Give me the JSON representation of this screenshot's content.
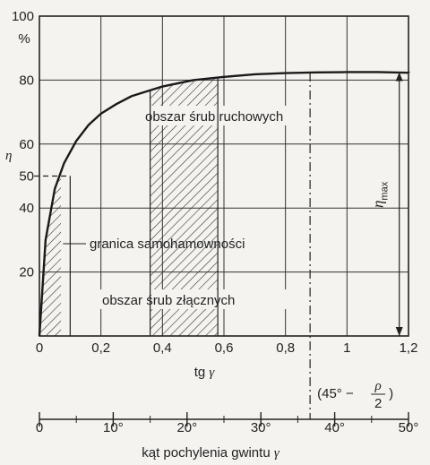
{
  "chart_data": {
    "type": "line",
    "title": "",
    "xlabel": "tg γ",
    "ylabel": "η",
    "yunit": "%",
    "xlim": [
      0,
      1.2
    ],
    "ylim": [
      0,
      100
    ],
    "x_ticks": [
      "0",
      "0,2",
      "0,4",
      "0,6",
      "0,8",
      "1",
      "1,2"
    ],
    "y_ticks": [
      "20",
      "40",
      "50",
      "60",
      "80",
      "100"
    ],
    "grid": true,
    "series": [
      {
        "values_note": "efficiency curve η vs tg γ",
        "x": [
          0.0,
          0.02,
          0.05,
          0.08,
          0.12,
          0.16,
          0.2,
          0.25,
          0.3,
          0.4,
          0.5,
          0.6,
          0.7,
          0.8,
          0.9,
          1.0,
          1.1,
          1.2
        ],
        "y": [
          0,
          30,
          46,
          54,
          61,
          66,
          69.5,
          72.5,
          75,
          78,
          80,
          81,
          81.8,
          82.2,
          82.4,
          82.5,
          82.5,
          82.3
        ]
      }
    ],
    "annotations": [
      {
        "text": "obszar śrub ruchowych",
        "x_range": [
          0.36,
          0.58
        ]
      },
      {
        "text": "granica samohamowności",
        "x": 0.1
      },
      {
        "text": "obszar śrub złącznych",
        "x_range": [
          0.0,
          0.07
        ]
      },
      {
        "text": "η",
        "sub": "max",
        "x": 1.17
      }
    ],
    "marker_45": {
      "text_main": "(45° −",
      "text_num": "ρ",
      "text_den": "2",
      "text_close": ")",
      "x": 0.88
    },
    "secondary_axis": {
      "label": "kąt pochylenia gwintu",
      "label_symbol": "γ",
      "range": [
        0,
        50
      ],
      "ticks": [
        "0",
        "10°",
        "20°",
        "30°",
        "40°",
        "50°"
      ]
    }
  }
}
